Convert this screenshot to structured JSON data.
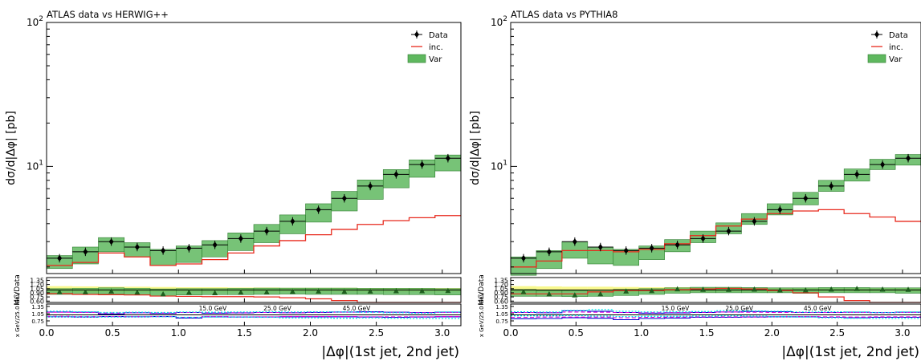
{
  "chart_data": [
    {
      "type": "line",
      "title": "ATLAS data vs HERWIG++",
      "xlabel": "|Δφ|(1st jet, 2nd jet)",
      "ylabel": "dσ/d|Δφ| [pb]",
      "ratio_ylabel": "MC/Data",
      "scale_ylabel": "x GeV/25.0 GeV",
      "yscale": "log",
      "xlim": [
        0,
        3.14159
      ],
      "ylim": [
        1.8,
        100
      ],
      "ratio_ylim": [
        0.55,
        1.45
      ],
      "xticks": [
        "0.0",
        "0.5",
        "1.0",
        "1.5",
        "2.0",
        "2.5",
        "3.0"
      ],
      "ratio_yticks": [
        "1.35",
        "1.20",
        "1.05",
        "0.90",
        "0.75",
        "0.60"
      ],
      "legend": [
        "Data",
        "inc.",
        "Var"
      ],
      "legend_position": "top-right",
      "scale_labels": [
        {
          "text": "15.0 GeV",
          "color": "#0000cc"
        },
        {
          "text": "25.0 GeV",
          "color": "#dd00dd"
        },
        {
          "text": "45.0 GeV",
          "color": "#00e5ee"
        }
      ],
      "data": [
        2.3,
        2.55,
        3.0,
        2.75,
        2.6,
        2.7,
        2.85,
        3.15,
        3.55,
        4.15,
        5.0,
        6.0,
        7.3,
        8.8,
        10.3,
        11.4
      ],
      "mc_inc": [
        2.05,
        2.15,
        2.5,
        2.35,
        2.05,
        2.1,
        2.25,
        2.5,
        2.8,
        3.05,
        3.35,
        3.65,
        3.95,
        4.2,
        4.4,
        4.55
      ],
      "var_low": [
        1.95,
        2.1,
        2.55,
        2.35,
        2.05,
        2.15,
        2.35,
        2.6,
        2.95,
        3.4,
        4.1,
        4.9,
        5.9,
        7.1,
        8.4,
        9.3
      ],
      "var_high": [
        2.4,
        2.75,
        3.2,
        2.95,
        2.65,
        2.8,
        3.05,
        3.45,
        3.95,
        4.6,
        5.5,
        6.7,
        8.05,
        9.5,
        11.1,
        12.0
      ],
      "ratio_inc": [
        0.87,
        0.84,
        0.83,
        0.82,
        0.78,
        0.77,
        0.76,
        0.76,
        0.75,
        0.72,
        0.68,
        0.62,
        0.52,
        0.45,
        0.4,
        0.39
      ],
      "ratio_mc_points": [
        0.94,
        0.93,
        0.96,
        0.92,
        0.86,
        0.92,
        0.9,
        0.92,
        0.93,
        0.95,
        0.96,
        0.95,
        0.96,
        0.97,
        0.97,
        0.98
      ],
      "ratio_var_low": [
        0.84,
        0.84,
        0.85,
        0.83,
        0.79,
        0.82,
        0.83,
        0.83,
        0.84,
        0.85,
        0.84,
        0.84,
        0.84,
        0.83,
        0.83,
        0.82
      ],
      "ratio_var_high": [
        1.05,
        1.06,
        1.08,
        1.06,
        1.04,
        1.05,
        1.05,
        1.06,
        1.07,
        1.07,
        1.07,
        1.07,
        1.06,
        1.06,
        1.06,
        1.05
      ],
      "ratio_yellow_low": [
        0.92,
        0.92,
        0.93,
        0.93,
        0.93,
        0.94,
        0.94,
        0.94,
        0.94,
        0.94,
        0.94,
        0.94,
        0.94,
        0.94,
        0.94,
        0.94
      ],
      "ratio_yellow_high": [
        1.14,
        1.13,
        1.12,
        1.12,
        1.11,
        1.1,
        1.1,
        1.09,
        1.09,
        1.08,
        1.08,
        1.08,
        1.07,
        1.07,
        1.07,
        1.07
      ],
      "scale": {
        "blue_up": [
          1.12,
          1.11,
          1.04,
          1.09,
          1.06,
          1.1,
          1.07,
          1.08,
          1.1,
          1.09,
          1.1,
          1.12,
          1.13,
          1.11,
          1.1,
          1.11
        ],
        "blue_dn": [
          0.92,
          0.91,
          0.93,
          0.92,
          0.93,
          0.87,
          0.92,
          0.91,
          0.91,
          0.92,
          0.92,
          0.92,
          0.91,
          0.9,
          0.91,
          0.92
        ],
        "mag_up": [
          1.11,
          1.1,
          1.08,
          1.09,
          1.08,
          1.1,
          1.09,
          1.09,
          1.1,
          1.09,
          1.11,
          1.11,
          1.11,
          1.1,
          1.09,
          1.1
        ],
        "mag_dn": [
          0.94,
          0.93,
          0.93,
          0.93,
          0.93,
          0.9,
          0.93,
          0.92,
          0.92,
          0.93,
          0.93,
          0.93,
          0.92,
          0.92,
          0.92,
          0.93
        ],
        "cyan_up": [
          1.15,
          1.13,
          1.1,
          1.11,
          1.1,
          1.12,
          1.11,
          1.12,
          1.13,
          1.12,
          1.13,
          1.12,
          1.11,
          1.09,
          1.07,
          1.12
        ],
        "cyan_dn": [
          0.92,
          0.92,
          0.91,
          0.92,
          0.92,
          0.9,
          0.91,
          0.91,
          0.9,
          0.87,
          0.87,
          0.86,
          0.87,
          0.86,
          0.85,
          0.85
        ]
      }
    },
    {
      "type": "line",
      "title": "ATLAS data vs PYTHIA8",
      "xlabel": "|Δφ|(1st jet, 2nd jet)",
      "ylabel": "dσ/d|Δφ| [pb]",
      "ratio_ylabel": "MC/Data",
      "scale_ylabel": "x GeV/25.0 GeV",
      "yscale": "log",
      "xlim": [
        0,
        3.14159
      ],
      "ylim": [
        1.8,
        100
      ],
      "ratio_ylim": [
        0.55,
        1.45
      ],
      "xticks": [
        "0.0",
        "0.5",
        "1.0",
        "1.5",
        "2.0",
        "2.5",
        "3.0"
      ],
      "ratio_yticks": [
        "1.35",
        "1.20",
        "1.05",
        "0.90",
        "0.75",
        "0.60"
      ],
      "legend": [
        "Data",
        "inc.",
        "Var"
      ],
      "legend_position": "top-right",
      "scale_labels": [
        {
          "text": "15.0 GeV",
          "color": "#0000cc"
        },
        {
          "text": "25.0 GeV",
          "color": "#dd00dd"
        },
        {
          "text": "45.0 GeV",
          "color": "#00e5ee"
        }
      ],
      "data": [
        2.3,
        2.55,
        3.0,
        2.75,
        2.6,
        2.7,
        2.85,
        3.15,
        3.55,
        4.15,
        5.0,
        6.0,
        7.3,
        8.8,
        10.3,
        11.4
      ],
      "mc_inc": [
        2.0,
        2.2,
        2.6,
        2.6,
        2.55,
        2.65,
        2.9,
        3.3,
        3.85,
        4.3,
        4.7,
        4.9,
        5.0,
        4.7,
        4.45,
        4.15
      ],
      "var_low": [
        1.75,
        1.95,
        2.3,
        2.1,
        2.05,
        2.25,
        2.55,
        2.95,
        3.4,
        3.95,
        4.6,
        5.4,
        6.7,
        7.9,
        9.5,
        10.2
      ],
      "var_high": [
        2.35,
        2.6,
        3.0,
        2.75,
        2.65,
        2.8,
        3.1,
        3.55,
        4.05,
        4.7,
        5.5,
        6.6,
        8.0,
        9.6,
        11.2,
        12.1
      ],
      "ratio_inc": [
        0.86,
        0.86,
        0.86,
        0.93,
        0.98,
        0.98,
        1.01,
        1.04,
        1.06,
        1.04,
        0.98,
        0.9,
        0.75,
        0.62,
        0.5,
        0.4
      ],
      "ratio_mc_points": [
        0.94,
        0.86,
        0.82,
        0.86,
        0.96,
        0.98,
        1.04,
        1.02,
        1.02,
        1.03,
        1.0,
        1.0,
        1.03,
        1.05,
        1.03,
        1.02
      ],
      "ratio_var_low": [
        0.77,
        0.77,
        0.76,
        0.77,
        0.8,
        0.84,
        0.88,
        0.9,
        0.9,
        0.9,
        0.9,
        0.88,
        0.9,
        0.9,
        0.9,
        0.88
      ],
      "ratio_var_high": [
        1.02,
        0.98,
        0.98,
        0.97,
        1.03,
        1.05,
        1.08,
        1.1,
        1.1,
        1.09,
        1.08,
        1.08,
        1.09,
        1.09,
        1.08,
        1.08
      ],
      "ratio_yellow_low": [
        0.92,
        0.92,
        0.93,
        0.93,
        0.93,
        0.94,
        0.94,
        0.94,
        0.94,
        0.94,
        0.94,
        0.94,
        0.94,
        0.94,
        0.94,
        0.94
      ],
      "ratio_yellow_high": [
        1.14,
        1.13,
        1.12,
        1.12,
        1.11,
        1.1,
        1.1,
        1.09,
        1.09,
        1.08,
        1.08,
        1.08,
        1.07,
        1.07,
        1.07,
        1.07
      ],
      "scale": {
        "blue_up": [
          1.1,
          1.09,
          1.17,
          1.15,
          1.1,
          1.07,
          1.08,
          1.1,
          1.12,
          1.14,
          1.13,
          1.1,
          1.1,
          1.11,
          1.1,
          1.11
        ],
        "blue_dn": [
          0.84,
          0.85,
          0.88,
          0.86,
          0.8,
          0.85,
          0.87,
          0.9,
          0.9,
          0.91,
          0.92,
          0.92,
          0.9,
          0.88,
          0.9,
          0.9
        ],
        "mag_up": [
          1.1,
          1.1,
          1.12,
          1.11,
          1.1,
          1.09,
          1.1,
          1.11,
          1.12,
          1.11,
          1.1,
          1.1,
          1.1,
          1.1,
          1.09,
          1.1
        ],
        "mag_dn": [
          0.9,
          0.91,
          0.91,
          0.91,
          0.88,
          0.9,
          0.91,
          0.92,
          0.92,
          0.92,
          0.93,
          0.93,
          0.92,
          0.91,
          0.92,
          0.92
        ],
        "cyan_up": [
          1.13,
          1.12,
          1.18,
          1.22,
          1.15,
          1.12,
          1.13,
          1.14,
          1.17,
          1.16,
          1.15,
          1.12,
          1.13,
          1.12,
          1.1,
          1.12
        ],
        "cyan_dn": [
          0.96,
          0.96,
          0.97,
          0.95,
          0.93,
          0.94,
          0.94,
          0.95,
          0.96,
          0.95,
          0.93,
          0.91,
          0.88,
          0.86,
          0.85,
          0.85
        ]
      }
    }
  ]
}
